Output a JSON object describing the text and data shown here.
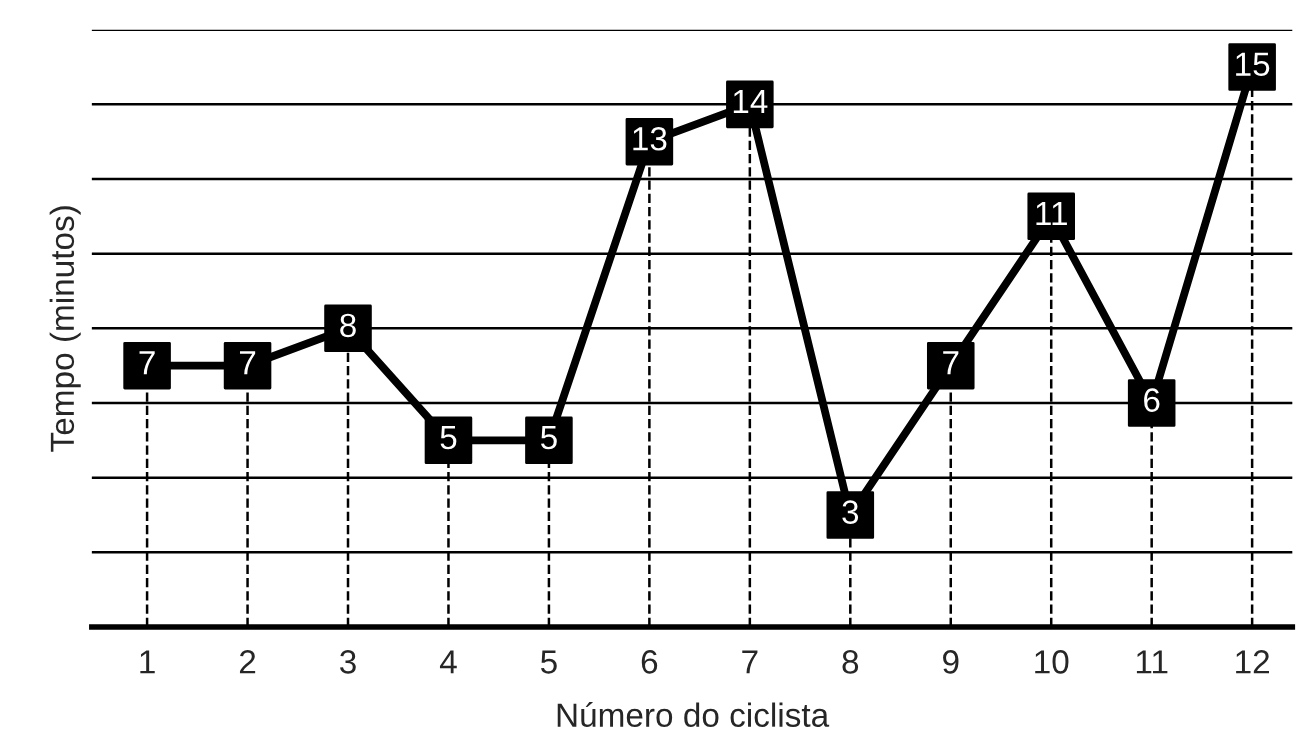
{
  "chart_data": {
    "type": "line",
    "xlabel": "Número do ciclista",
    "ylabel": "Tempo (minutos)",
    "categories": [
      "1",
      "2",
      "3",
      "4",
      "5",
      "6",
      "7",
      "8",
      "9",
      "10",
      "11",
      "12"
    ],
    "series": [
      {
        "color": "#000000",
        "values": [
          7,
          7,
          8,
          5,
          5,
          13,
          14,
          3,
          7,
          11,
          6,
          15
        ]
      }
    ],
    "ylim": [
      0,
      16
    ],
    "yticks": [
      {
        "value": 0,
        "label": null
      },
      {
        "value": 2,
        "label": null
      },
      {
        "value": 4,
        "label": null
      },
      {
        "value": 6,
        "label": null
      },
      {
        "value": 8,
        "label": null
      },
      {
        "value": 10,
        "label": null
      },
      {
        "value": 12,
        "label": null
      },
      {
        "value": 14,
        "label": null
      },
      {
        "value": 16,
        "label": null
      }
    ],
    "grid": true,
    "tick_labels": "x",
    "data_labels": true,
    "marker": "square",
    "line_style": "solid"
  }
}
